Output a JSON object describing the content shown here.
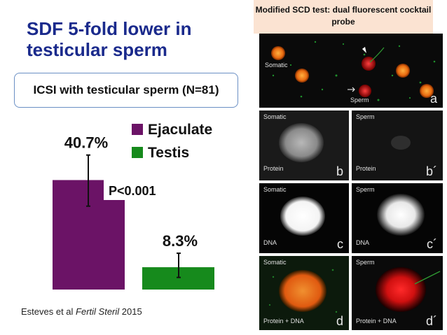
{
  "slide": {
    "title": "SDF 5-fold lower in testicular sperm",
    "subtitle": "ICSI with testicular sperm (N=81)",
    "citation_author": "Esteves et al ",
    "citation_journal": "Fertil Steril",
    "citation_year": " 2015"
  },
  "chart_data": {
    "type": "bar",
    "categories": [
      "Ejaculate",
      "Testis"
    ],
    "values": [
      40.7,
      8.3
    ],
    "value_labels": [
      "40.7%",
      "8.3%"
    ],
    "error_low": [
      31.0,
      4.5
    ],
    "error_high": [
      50.0,
      13.5
    ],
    "colors": [
      "#6b1366",
      "#168a1c"
    ],
    "legend": [
      "Ejaculate",
      "Testis"
    ],
    "legend_position": "top-right",
    "annotation": "P<0.001",
    "ylim": [
      0,
      52
    ],
    "grid": false
  },
  "panel": {
    "header": "Modified SCD test: dual fluorescent cocktail probe",
    "images": [
      {
        "id": "a",
        "labels": [
          "Somatic",
          "Sperm"
        ],
        "tag": "a"
      },
      {
        "id": "b",
        "labels": [
          "Somatic",
          "Protein"
        ],
        "tag": "b"
      },
      {
        "id": "b2",
        "labels": [
          "Sperm",
          "Protein"
        ],
        "tag": "b´"
      },
      {
        "id": "c",
        "labels": [
          "Somatic",
          "DNA"
        ],
        "tag": "c"
      },
      {
        "id": "c2",
        "labels": [
          "Sperm",
          "DNA"
        ],
        "tag": "c´"
      },
      {
        "id": "d",
        "labels": [
          "Somatic",
          "Protein + DNA"
        ],
        "tag": "d"
      },
      {
        "id": "d2",
        "labels": [
          "Sperm",
          "Protein + DNA"
        ],
        "tag": "d´"
      }
    ]
  }
}
